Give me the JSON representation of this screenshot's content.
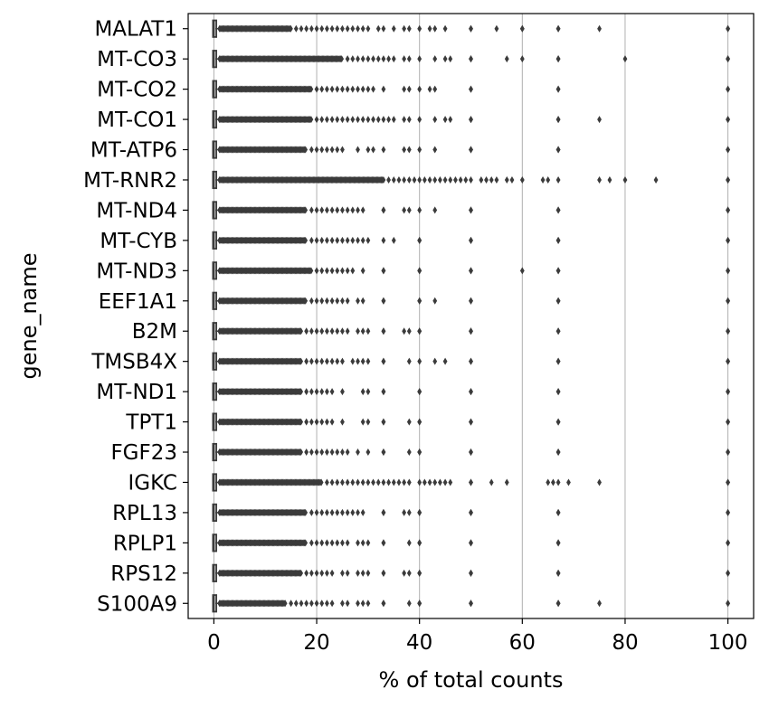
{
  "chart_data": {
    "type": "box",
    "orientation": "horizontal",
    "title": "",
    "xlabel": "% of total counts",
    "ylabel": "gene_name",
    "xlim": [
      -5,
      105
    ],
    "xticks": [
      0,
      20,
      40,
      60,
      80,
      100
    ],
    "grid": "vertical",
    "colors": {
      "outlier": "#3b3b3b",
      "box": "#3b3b3b",
      "grid": "#b0b0b0",
      "frame": "#000000"
    },
    "categories": [
      "MALAT1",
      "MT-CO3",
      "MT-CO2",
      "MT-CO1",
      "MT-ATP6",
      "MT-RNR2",
      "MT-ND4",
      "MT-CYB",
      "MT-ND3",
      "EEF1A1",
      "B2M",
      "TMSB4X",
      "MT-ND1",
      "TPT1",
      "FGF23",
      "IGKC",
      "RPL13",
      "RPLP1",
      "RPS12",
      "S100A9"
    ],
    "series": [
      {
        "values": {
          "median": 0,
          "q1": 0,
          "q3": 0.3,
          "whisker_low": 0,
          "whisker_high": 0.8,
          "dense_outliers_max": 15,
          "outliers": [
            16,
            17,
            18,
            19,
            20,
            21,
            22,
            23,
            24,
            25,
            26,
            27,
            28,
            29,
            30,
            32,
            33,
            35,
            37,
            38,
            40,
            42,
            43,
            45,
            50,
            50,
            55,
            60,
            60,
            67,
            67,
            75,
            100,
            100
          ]
        }
      },
      {
        "values": {
          "median": 0,
          "q1": 0,
          "q3": 0.3,
          "whisker_low": 0,
          "whisker_high": 0.8,
          "dense_outliers_max": 25,
          "outliers": [
            26,
            27,
            28,
            29,
            30,
            31,
            32,
            33,
            34,
            35,
            37,
            38,
            40,
            43,
            45,
            46,
            50,
            50,
            57,
            60,
            67,
            67,
            80,
            100,
            100
          ]
        }
      },
      {
        "values": {
          "median": 0,
          "q1": 0,
          "q3": 0.3,
          "whisker_low": 0,
          "whisker_high": 0.8,
          "dense_outliers_max": 19,
          "outliers": [
            20,
            21,
            22,
            23,
            24,
            25,
            26,
            27,
            28,
            29,
            30,
            31,
            33,
            37,
            38,
            40,
            42,
            43,
            50,
            50,
            67,
            67,
            100,
            100
          ]
        }
      },
      {
        "values": {
          "median": 0,
          "q1": 0,
          "q3": 0.3,
          "whisker_low": 0,
          "whisker_high": 0.8,
          "dense_outliers_max": 19,
          "outliers": [
            20,
            21,
            22,
            23,
            24,
            25,
            26,
            27,
            28,
            29,
            30,
            31,
            32,
            33,
            34,
            35,
            37,
            38,
            40,
            43,
            45,
            46,
            50,
            50,
            67,
            67,
            75,
            100,
            100
          ]
        }
      },
      {
        "values": {
          "median": 0,
          "q1": 0,
          "q3": 0.3,
          "whisker_low": 0,
          "whisker_high": 0.8,
          "dense_outliers_max": 18,
          "outliers": [
            19,
            20,
            21,
            22,
            23,
            24,
            25,
            28,
            30,
            31,
            33,
            37,
            38,
            40,
            43,
            50,
            50,
            67,
            67,
            100,
            100
          ]
        }
      },
      {
        "values": {
          "median": 0,
          "q1": 0,
          "q3": 0.3,
          "whisker_low": 0,
          "whisker_high": 0.8,
          "dense_outliers_max": 33,
          "outliers": [
            34,
            35,
            36,
            37,
            38,
            39,
            40,
            41,
            42,
            43,
            44,
            45,
            46,
            47,
            48,
            49,
            50,
            52,
            53,
            54,
            55,
            57,
            58,
            60,
            64,
            65,
            67,
            75,
            77,
            80,
            86,
            100,
            100
          ]
        }
      },
      {
        "values": {
          "median": 0,
          "q1": 0,
          "q3": 0.3,
          "whisker_low": 0,
          "whisker_high": 0.8,
          "dense_outliers_max": 18,
          "outliers": [
            19,
            20,
            21,
            22,
            23,
            24,
            25,
            26,
            27,
            28,
            29,
            33,
            33,
            37,
            38,
            40,
            43,
            50,
            50,
            67,
            67,
            100,
            100
          ]
        }
      },
      {
        "values": {
          "median": 0,
          "q1": 0,
          "q3": 0.3,
          "whisker_low": 0,
          "whisker_high": 0.8,
          "dense_outliers_max": 18,
          "outliers": [
            19,
            20,
            21,
            22,
            23,
            24,
            25,
            26,
            27,
            28,
            29,
            30,
            33,
            35,
            40,
            40,
            50,
            50,
            67,
            67,
            100,
            100
          ]
        }
      },
      {
        "values": {
          "median": 0,
          "q1": 0,
          "q3": 0.3,
          "whisker_low": 0,
          "whisker_high": 0.8,
          "dense_outliers_max": 19,
          "outliers": [
            20,
            21,
            22,
            23,
            24,
            25,
            26,
            27,
            29,
            33,
            33,
            40,
            40,
            50,
            50,
            60,
            67,
            67,
            100,
            100
          ]
        }
      },
      {
        "values": {
          "median": 0,
          "q1": 0,
          "q3": 0.3,
          "whisker_low": 0,
          "whisker_high": 0.8,
          "dense_outliers_max": 18,
          "outliers": [
            19,
            20,
            21,
            22,
            23,
            24,
            25,
            26,
            28,
            29,
            33,
            33,
            40,
            40,
            43,
            50,
            50,
            67,
            67,
            100,
            100
          ]
        }
      },
      {
        "values": {
          "median": 0,
          "q1": 0,
          "q3": 0.3,
          "whisker_low": 0,
          "whisker_high": 0.8,
          "dense_outliers_max": 17,
          "outliers": [
            18,
            19,
            20,
            21,
            22,
            23,
            24,
            25,
            26,
            28,
            29,
            30,
            33,
            33,
            37,
            38,
            40,
            40,
            50,
            50,
            67,
            67,
            100,
            100
          ]
        }
      },
      {
        "values": {
          "median": 0,
          "q1": 0,
          "q3": 0.3,
          "whisker_low": 0,
          "whisker_high": 0.8,
          "dense_outliers_max": 17,
          "outliers": [
            18,
            19,
            20,
            21,
            22,
            23,
            24,
            25,
            27,
            28,
            29,
            30,
            33,
            33,
            38,
            40,
            43,
            45,
            50,
            50,
            67,
            67,
            100,
            100
          ]
        }
      },
      {
        "values": {
          "median": 0,
          "q1": 0,
          "q3": 0.3,
          "whisker_low": 0,
          "whisker_high": 0.8,
          "dense_outliers_max": 17,
          "outliers": [
            18,
            19,
            20,
            21,
            22,
            23,
            25,
            29,
            30,
            33,
            33,
            40,
            40,
            50,
            50,
            67,
            67,
            100,
            100
          ]
        }
      },
      {
        "values": {
          "median": 0,
          "q1": 0,
          "q3": 0.3,
          "whisker_low": 0,
          "whisker_high": 0.8,
          "dense_outliers_max": 17,
          "outliers": [
            18,
            19,
            20,
            21,
            22,
            23,
            25,
            29,
            30,
            33,
            33,
            38,
            40,
            40,
            50,
            50,
            67,
            67,
            100,
            100
          ]
        }
      },
      {
        "values": {
          "median": 0,
          "q1": 0,
          "q3": 0.3,
          "whisker_low": 0,
          "whisker_high": 0.8,
          "dense_outliers_max": 17,
          "outliers": [
            18,
            19,
            20,
            21,
            22,
            23,
            24,
            25,
            26,
            28,
            30,
            33,
            33,
            38,
            40,
            40,
            50,
            50,
            67,
            67,
            100,
            100
          ]
        }
      },
      {
        "values": {
          "median": 0,
          "q1": 0,
          "q3": 0.3,
          "whisker_low": 0,
          "whisker_high": 0.8,
          "dense_outliers_max": 21,
          "outliers": [
            22,
            23,
            24,
            25,
            26,
            27,
            28,
            29,
            30,
            31,
            32,
            33,
            34,
            35,
            36,
            37,
            38,
            40,
            41,
            42,
            43,
            44,
            45,
            46,
            50,
            50,
            54,
            57,
            65,
            66,
            67,
            69,
            75,
            100,
            100
          ]
        }
      },
      {
        "values": {
          "median": 0,
          "q1": 0,
          "q3": 0.3,
          "whisker_low": 0,
          "whisker_high": 0.8,
          "dense_outliers_max": 18,
          "outliers": [
            19,
            20,
            21,
            22,
            23,
            24,
            25,
            26,
            27,
            28,
            29,
            33,
            33,
            37,
            38,
            40,
            40,
            50,
            50,
            67,
            67,
            100,
            100
          ]
        }
      },
      {
        "values": {
          "median": 0,
          "q1": 0,
          "q3": 0.3,
          "whisker_low": 0,
          "whisker_high": 0.8,
          "dense_outliers_max": 18,
          "outliers": [
            19,
            20,
            21,
            22,
            23,
            24,
            25,
            26,
            28,
            29,
            30,
            33,
            33,
            38,
            40,
            40,
            50,
            50,
            67,
            67,
            100,
            100
          ]
        }
      },
      {
        "values": {
          "median": 0,
          "q1": 0,
          "q3": 0.3,
          "whisker_low": 0,
          "whisker_high": 0.8,
          "dense_outliers_max": 17,
          "outliers": [
            18,
            19,
            20,
            21,
            22,
            23,
            25,
            26,
            28,
            29,
            30,
            33,
            33,
            37,
            38,
            40,
            40,
            50,
            50,
            67,
            67,
            100,
            100
          ]
        }
      },
      {
        "values": {
          "median": 0,
          "q1": 0,
          "q3": 0.3,
          "whisker_low": 0,
          "whisker_high": 0.8,
          "dense_outliers_max": 14,
          "outliers": [
            15,
            16,
            17,
            18,
            19,
            20,
            21,
            22,
            23,
            25,
            26,
            28,
            29,
            30,
            33,
            33,
            38,
            40,
            40,
            50,
            50,
            67,
            67,
            75,
            100,
            100
          ]
        }
      }
    ]
  }
}
